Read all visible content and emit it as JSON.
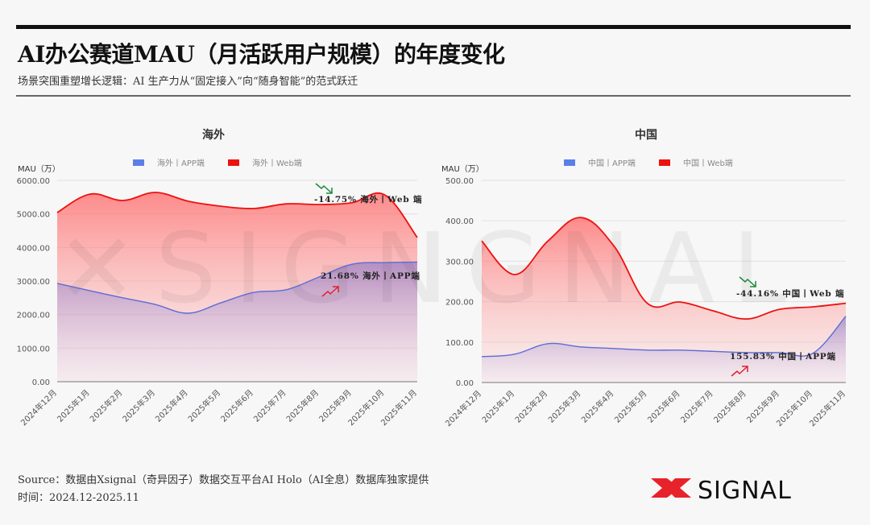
{
  "header": {
    "title": "AI办公赛道MAU（月活跃用户规模）的年度变化",
    "subtitle": "场景突围重塑增长逻辑：AI 生产力从“固定接入”向“随身智能”的范式跃迁"
  },
  "footer": {
    "source": "Source：数据由Xsignal（奇异因子）数据交互平台AI Holo（AI全息）数据库独家提供",
    "period": "时间：2024.12-2025.11",
    "logo_text": "SIGNAL"
  },
  "watermark": "SIGNAL",
  "colors": {
    "app": "#5b7fe8",
    "app_line": "#5b6cd6",
    "web": "#ee1111",
    "up_arrow": "#e0202a",
    "down_arrow": "#1a8a3a",
    "logo_x": "#e8222a"
  },
  "chart_data": [
    {
      "type": "area",
      "title": "海外",
      "ylabel": "MAU（万）",
      "xlabel": "",
      "ylim": [
        0,
        6000
      ],
      "yticks": [
        "0.00",
        "1000.00",
        "2000.00",
        "3000.00",
        "4000.00",
        "5000.00",
        "6000.00"
      ],
      "categories": [
        "2024年12月",
        "2025年1月",
        "2025年2月",
        "2025年3月",
        "2025年4月",
        "2025年5月",
        "2025年6月",
        "2025年7月",
        "2025年8月",
        "2025年9月",
        "2025年10月",
        "2025年11月"
      ],
      "legend": [
        "海外丨APP端",
        "海外丨Web端"
      ],
      "legend_position": "top",
      "grid": true,
      "series": [
        {
          "name": "海外丨APP端",
          "values": [
            2930,
            2710,
            2500,
            2300,
            2040,
            2350,
            2660,
            2740,
            3120,
            3500,
            3550,
            3565
          ]
        },
        {
          "name": "海外丨Web端",
          "values": [
            5040,
            5590,
            5400,
            5640,
            5380,
            5230,
            5160,
            5300,
            5280,
            5330,
            5570,
            4297
          ]
        }
      ],
      "annotations": [
        {
          "text": "-14.75%  海外丨Web 端",
          "trend": "down"
        },
        {
          "text": "21.68%  海外丨APP端",
          "trend": "up"
        }
      ]
    },
    {
      "type": "area",
      "title": "中国",
      "ylabel": "MAU（万）",
      "xlabel": "",
      "ylim": [
        0,
        500
      ],
      "yticks": [
        "0.00",
        "100.00",
        "200.00",
        "300.00",
        "400.00",
        "500.00"
      ],
      "categories": [
        "2024年12月",
        "2025年1月",
        "2025年2月",
        "2025年3月",
        "2025年4月",
        "2025年5月",
        "2025年6月",
        "2025年7月",
        "2025年8月",
        "2025年9月",
        "2025年10月",
        "2025年11月"
      ],
      "legend": [
        "中国丨APP端",
        "中国丨Web端"
      ],
      "legend_position": "top",
      "grid": true,
      "series": [
        {
          "name": "中国丨APP端",
          "values": [
            64,
            70,
            96,
            88,
            84,
            80,
            80,
            77,
            74,
            74,
            72,
            164
          ]
        },
        {
          "name": "中国丨Web端",
          "values": [
            350,
            267,
            350,
            408,
            337,
            196,
            199,
            177,
            157,
            181,
            187,
            196
          ]
        }
      ],
      "annotations": [
        {
          "text": "-44.16%  中国丨Web 端",
          "trend": "down"
        },
        {
          "text": "155.83%  中国丨APP端",
          "trend": "up"
        }
      ]
    }
  ]
}
